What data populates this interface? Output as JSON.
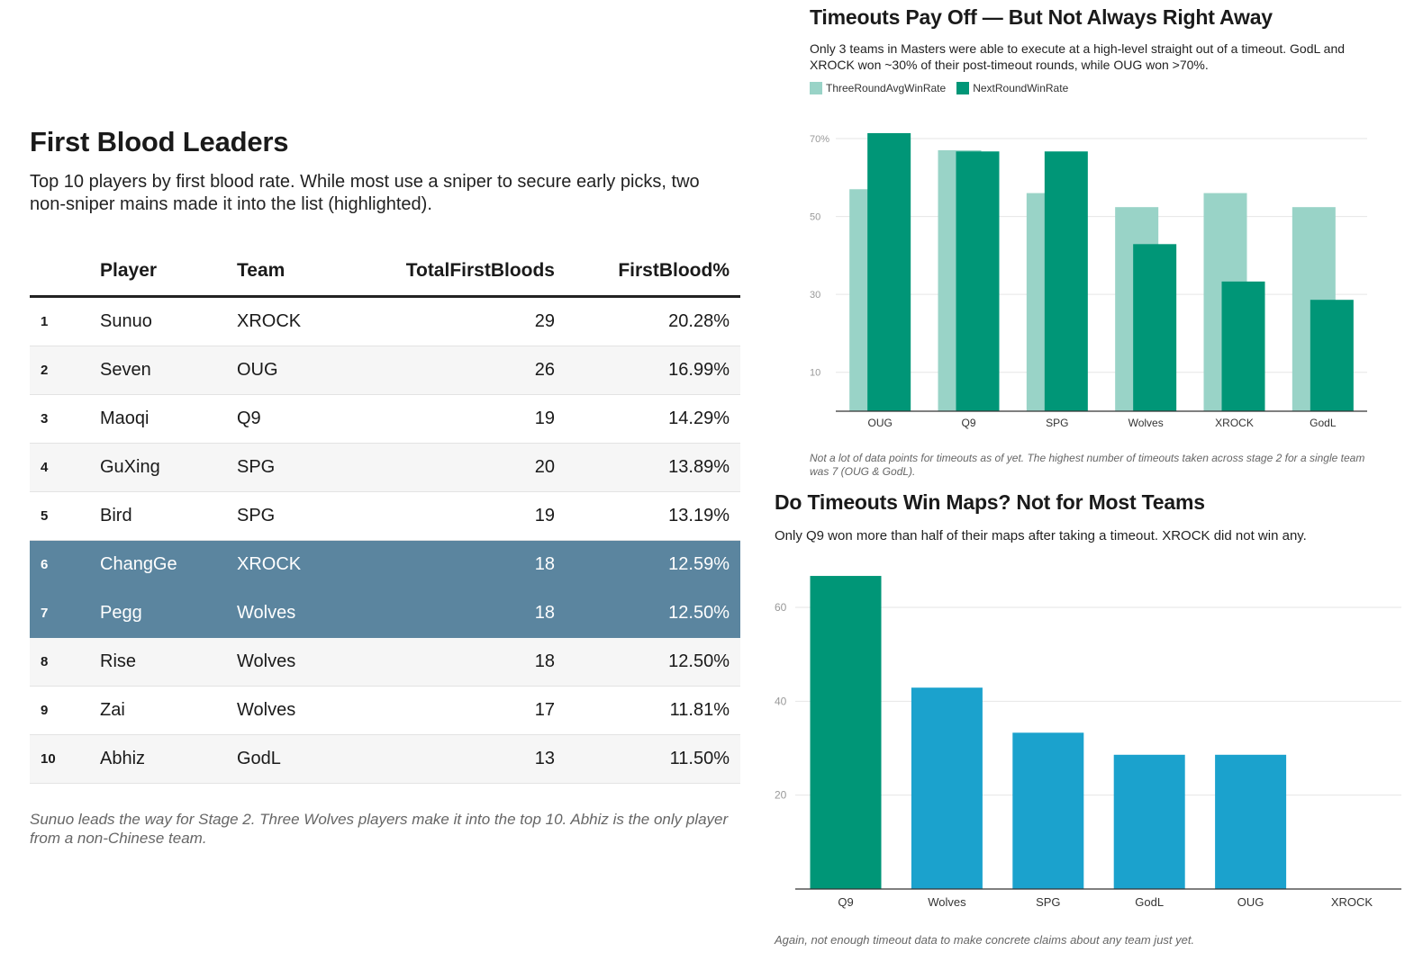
{
  "left": {
    "title": "First Blood Leaders",
    "description": "Top 10 players by first blood rate. While most use a sniper to secure early picks, two non-sniper mains made it into the list (highlighted).",
    "columns": [
      "",
      "Player",
      "Team",
      "TotalFirstBloods",
      "FirstBlood%"
    ],
    "rows": [
      {
        "rank": "1",
        "player": "Sunuo",
        "team": "XROCK",
        "total": "29",
        "pct": "20.28%",
        "highlight": false
      },
      {
        "rank": "2",
        "player": "Seven",
        "team": "OUG",
        "total": "26",
        "pct": "16.99%",
        "highlight": false
      },
      {
        "rank": "3",
        "player": "Maoqi",
        "team": "Q9",
        "total": "19",
        "pct": "14.29%",
        "highlight": false
      },
      {
        "rank": "4",
        "player": "GuXing",
        "team": "SPG",
        "total": "20",
        "pct": "13.89%",
        "highlight": false
      },
      {
        "rank": "5",
        "player": "Bird",
        "team": "SPG",
        "total": "19",
        "pct": "13.19%",
        "highlight": false
      },
      {
        "rank": "6",
        "player": "ChangGe",
        "team": "XROCK",
        "total": "18",
        "pct": "12.59%",
        "highlight": true
      },
      {
        "rank": "7",
        "player": "Pegg",
        "team": "Wolves",
        "total": "18",
        "pct": "12.50%",
        "highlight": true
      },
      {
        "rank": "8",
        "player": "Rise",
        "team": "Wolves",
        "total": "18",
        "pct": "12.50%",
        "highlight": false
      },
      {
        "rank": "9",
        "player": "Zai",
        "team": "Wolves",
        "total": "17",
        "pct": "11.81%",
        "highlight": false
      },
      {
        "rank": "10",
        "player": "Abhiz",
        "team": "GodL",
        "total": "13",
        "pct": "11.50%",
        "highlight": false
      }
    ],
    "note": "Sunuo leads the way for Stage 2. Three Wolves players make it into the top 10. Abhiz is the only player from a non-Chinese team.",
    "highlight_color": "#5b859f"
  },
  "chart_data": [
    {
      "type": "bar",
      "title": "Timeouts Pay Off — But Not Always Right Away",
      "subtitle": "Only 3 teams in Masters were able to execute at a high-level straight out of a timeout. GodL and XROCK won ~30% of their post-timeout rounds, while OUG won >70%.",
      "categories": [
        "OUG",
        "Q9",
        "SPG",
        "Wolves",
        "XROCK",
        "GodL"
      ],
      "series": [
        {
          "name": "ThreeRoundAvgWinRate",
          "color": "#99d3c7",
          "values": [
            57,
            67,
            56,
            52.4,
            56,
            52.4
          ]
        },
        {
          "name": "NextRoundWinRate",
          "color": "#009677",
          "values": [
            71.4,
            66.7,
            66.7,
            42.9,
            33.3,
            28.6
          ]
        }
      ],
      "yticks": [
        10,
        30,
        50,
        70
      ],
      "ytick_labels": [
        "10",
        "30",
        "50",
        "70%"
      ],
      "ylim": [
        0,
        75
      ],
      "grid": true,
      "legend": "top-left",
      "note": "Not a lot of data points for timeouts as of yet. The highest number of timeouts taken across stage 2 for a single team was 7 (OUG & GodL)."
    },
    {
      "type": "bar",
      "title": "Do Timeouts Win Maps? Not for Most Teams",
      "subtitle": "Only Q9 won more than half of their maps after taking a timeout. XROCK did not win any.",
      "categories": [
        "Q9",
        "Wolves",
        "SPG",
        "GodL",
        "OUG",
        "XROCK"
      ],
      "values": [
        66.7,
        42.9,
        33.3,
        28.6,
        28.6,
        0
      ],
      "colors": [
        "#009677",
        "#1ba2cd",
        "#1ba2cd",
        "#1ba2cd",
        "#1ba2cd",
        "#1ba2cd"
      ],
      "yticks": [
        20,
        40,
        60
      ],
      "ylim": [
        0,
        70
      ],
      "grid": true,
      "note": "Again, not enough timeout data to make concrete claims about any team just yet."
    }
  ]
}
